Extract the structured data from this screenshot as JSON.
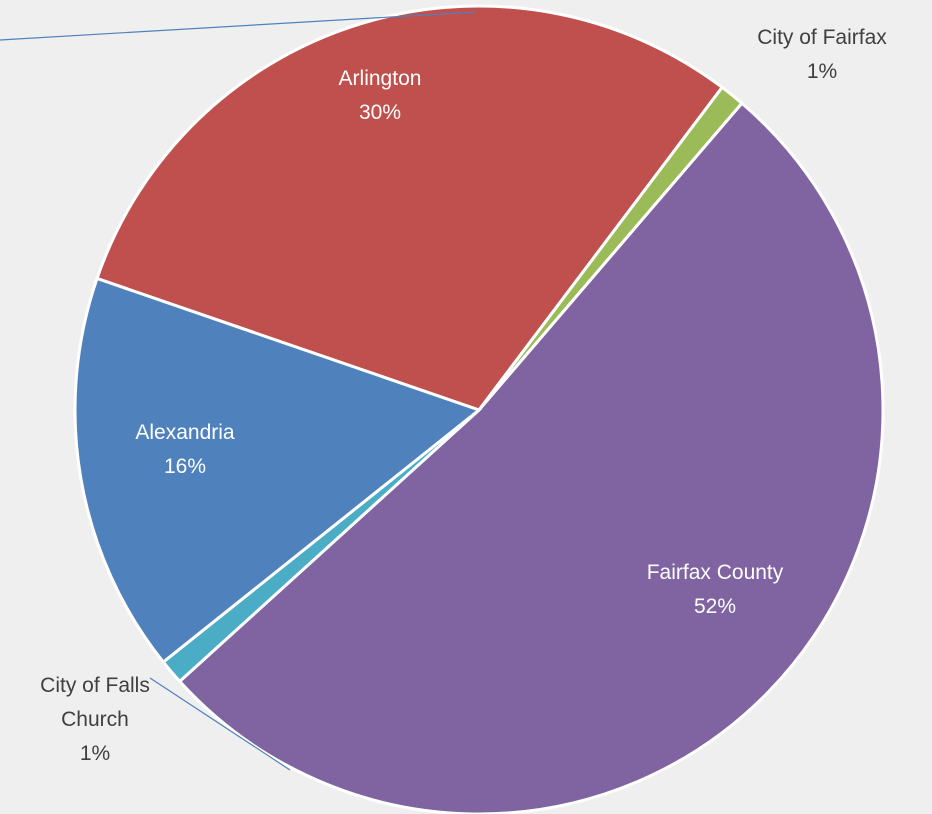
{
  "chart_data": {
    "type": "pie",
    "categories": [
      "Arlington",
      "City of Fairfax",
      "Fairfax County",
      "City of Falls Church",
      "Alexandria"
    ],
    "values": [
      30,
      1,
      52,
      1,
      16
    ],
    "value_labels": [
      "30%",
      "1%",
      "52%",
      "1%",
      "16%"
    ],
    "colors": [
      "#c0504d",
      "#9bbb59",
      "#8064a2",
      "#4bacc6",
      "#4f81bd"
    ]
  }
}
